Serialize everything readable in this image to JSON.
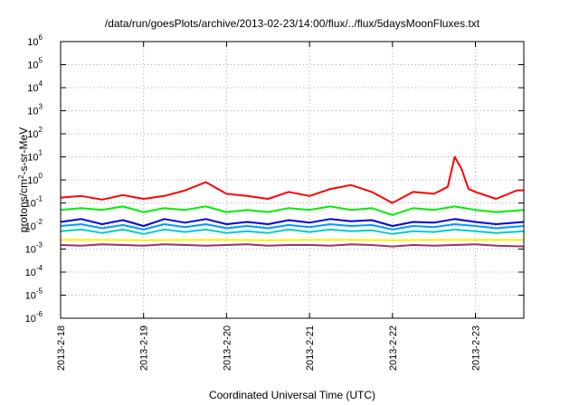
{
  "chart_data": {
    "type": "line",
    "title": "/data/run/goesPlots/archive/2013-02-23/14:00/flux/../flux/5daysMoonFluxes.txt",
    "xlabel": "Coordinated Universal Time (UTC)",
    "ylabel": "protons/cm2-s-sr-MeV",
    "y_scale": "log",
    "ylim": [
      1e-06,
      1000000.0
    ],
    "xlim": [
      "2013-02-18 00:00",
      "2013-02-23 14:00"
    ],
    "grid": true,
    "y_ticks": [
      {
        "base": "10",
        "exp": "-6",
        "value": 1e-06
      },
      {
        "base": "10",
        "exp": "-5",
        "value": 1e-05
      },
      {
        "base": "10",
        "exp": "-4",
        "value": 0.0001
      },
      {
        "base": "10",
        "exp": "-3",
        "value": 0.001
      },
      {
        "base": "10",
        "exp": "-2",
        "value": 0.01
      },
      {
        "base": "10",
        "exp": "-1",
        "value": 0.1
      },
      {
        "base": "10",
        "exp": "0",
        "value": 1
      },
      {
        "base": "10",
        "exp": "1",
        "value": 10
      },
      {
        "base": "10",
        "exp": "2",
        "value": 100
      },
      {
        "base": "10",
        "exp": "3",
        "value": 1000
      },
      {
        "base": "10",
        "exp": "4",
        "value": 10000
      },
      {
        "base": "10",
        "exp": "5",
        "value": 100000
      },
      {
        "base": "10",
        "exp": "6",
        "value": 1000000
      }
    ],
    "x_ticks": [
      "2013-2-18",
      "2013-2-19",
      "2013-2-20",
      "2013-2-21",
      "2013-2-22",
      "2013-2-23"
    ],
    "series": [
      {
        "color": "#ff0000",
        "x_hours": [
          0,
          6,
          12,
          18,
          24,
          30,
          36,
          42,
          48,
          54,
          60,
          66,
          72,
          78,
          84,
          90,
          96,
          102,
          108,
          112,
          114,
          116,
          118,
          120,
          126,
          132,
          134
        ],
        "values": [
          0.17,
          0.2,
          0.14,
          0.22,
          0.15,
          0.2,
          0.35,
          0.8,
          0.25,
          0.2,
          0.15,
          0.3,
          0.2,
          0.4,
          0.6,
          0.3,
          0.1,
          0.3,
          0.25,
          0.5,
          10,
          3,
          0.4,
          0.3,
          0.15,
          0.35,
          0.35
        ]
      },
      {
        "color": "#00ee00",
        "x_hours": [
          0,
          6,
          12,
          18,
          24,
          30,
          36,
          42,
          48,
          54,
          60,
          66,
          72,
          78,
          84,
          90,
          96,
          102,
          108,
          114,
          120,
          126,
          134
        ],
        "values": [
          0.05,
          0.06,
          0.05,
          0.07,
          0.04,
          0.06,
          0.05,
          0.07,
          0.04,
          0.05,
          0.04,
          0.06,
          0.05,
          0.07,
          0.05,
          0.06,
          0.03,
          0.06,
          0.05,
          0.07,
          0.05,
          0.04,
          0.05
        ]
      },
      {
        "color": "#0000dd",
        "x_hours": [
          0,
          6,
          12,
          18,
          24,
          30,
          36,
          42,
          48,
          54,
          60,
          66,
          72,
          78,
          84,
          90,
          96,
          102,
          108,
          114,
          120,
          126,
          134
        ],
        "values": [
          0.015,
          0.02,
          0.012,
          0.018,
          0.01,
          0.02,
          0.014,
          0.02,
          0.012,
          0.015,
          0.012,
          0.018,
          0.014,
          0.02,
          0.016,
          0.018,
          0.01,
          0.015,
          0.014,
          0.02,
          0.015,
          0.012,
          0.015
        ]
      },
      {
        "color": "#0099ff",
        "x_hours": [
          0,
          6,
          12,
          18,
          24,
          30,
          36,
          42,
          48,
          54,
          60,
          66,
          72,
          78,
          84,
          90,
          96,
          102,
          108,
          114,
          120,
          126,
          134
        ],
        "values": [
          0.01,
          0.012,
          0.008,
          0.011,
          0.007,
          0.012,
          0.009,
          0.012,
          0.008,
          0.01,
          0.008,
          0.011,
          0.009,
          0.012,
          0.01,
          0.011,
          0.007,
          0.01,
          0.009,
          0.012,
          0.01,
          0.008,
          0.01
        ]
      },
      {
        "color": "#00cccc",
        "x_hours": [
          0,
          6,
          12,
          18,
          24,
          30,
          36,
          42,
          48,
          54,
          60,
          66,
          72,
          78,
          84,
          90,
          96,
          102,
          108,
          114,
          120,
          126,
          134
        ],
        "values": [
          0.006,
          0.007,
          0.005,
          0.007,
          0.0045,
          0.007,
          0.0055,
          0.007,
          0.005,
          0.006,
          0.005,
          0.007,
          0.0055,
          0.007,
          0.006,
          0.0065,
          0.0045,
          0.006,
          0.0055,
          0.007,
          0.006,
          0.005,
          0.006
        ]
      },
      {
        "color": "#ffee00",
        "x_hours": [
          0,
          12,
          24,
          36,
          48,
          60,
          72,
          84,
          96,
          108,
          120,
          134
        ],
        "values": [
          0.0025,
          0.0025,
          0.0024,
          0.0025,
          0.0025,
          0.0024,
          0.0025,
          0.0025,
          0.0024,
          0.0025,
          0.0025,
          0.0025
        ]
      },
      {
        "color": "#993366",
        "x_hours": [
          0,
          6,
          12,
          18,
          24,
          30,
          36,
          42,
          48,
          54,
          60,
          66,
          72,
          78,
          84,
          90,
          96,
          102,
          108,
          114,
          120,
          126,
          134
        ],
        "values": [
          0.0015,
          0.0014,
          0.0016,
          0.0015,
          0.0014,
          0.0016,
          0.0015,
          0.0014,
          0.0015,
          0.0016,
          0.0014,
          0.0015,
          0.0015,
          0.0014,
          0.0016,
          0.0015,
          0.0013,
          0.0015,
          0.0014,
          0.0015,
          0.0016,
          0.0014,
          0.0013
        ]
      }
    ]
  }
}
